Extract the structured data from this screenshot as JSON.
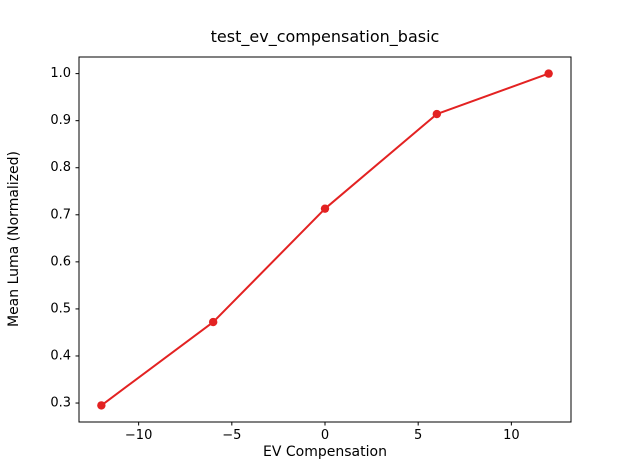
{
  "chart_data": {
    "type": "line",
    "title": "test_ev_compensation_basic",
    "xlabel": "EV Compensation",
    "ylabel": "Mean Luma (Normalized)",
    "x": [
      -12,
      -6,
      0,
      6,
      12
    ],
    "y": [
      0.295,
      0.472,
      0.713,
      0.914,
      1.0
    ],
    "series": [
      {
        "name": "Mean Luma (Normalized)",
        "x": [
          -12,
          -6,
          0,
          6,
          12
        ],
        "values": [
          0.295,
          0.472,
          0.713,
          0.914,
          1.0
        ]
      }
    ],
    "xlim": [
      -13.2,
      13.2
    ],
    "ylim": [
      0.2597,
      1.0353
    ],
    "xticks": [
      -10,
      -5,
      0,
      5,
      10
    ],
    "xtick_labels": [
      "−10",
      "−5",
      "0",
      "5",
      "10"
    ],
    "yticks": [
      0.3,
      0.4,
      0.5,
      0.6,
      0.7,
      0.8,
      0.9,
      1.0
    ],
    "ytick_labels": [
      "0.3",
      "0.4",
      "0.5",
      "0.6",
      "0.7",
      "0.8",
      "0.9",
      "1.0"
    ],
    "line_color": "#e32222",
    "marker": "circle",
    "marker_color": "#e32222",
    "axes_color": "#000000",
    "background_color": "#ffffff",
    "grid": false,
    "legend_position": "none"
  }
}
